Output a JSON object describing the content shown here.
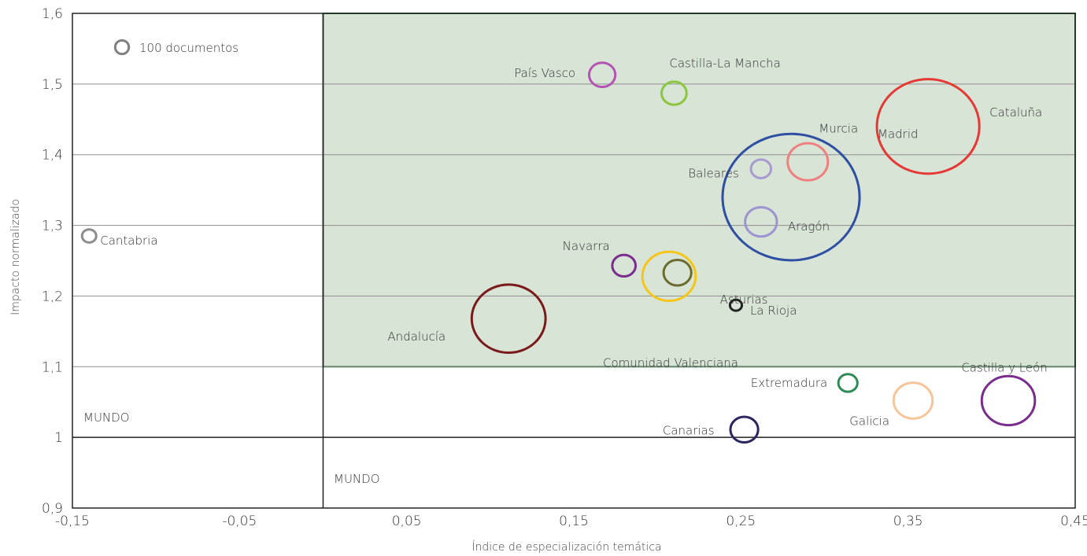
{
  "chart_data": {
    "type": "scatter",
    "title": "",
    "xlabel": "Índice de especialización temática",
    "ylabel": "Impacto normalizado",
    "xlim": [
      -0.15,
      0.45
    ],
    "ylim": [
      0.9,
      1.6
    ],
    "x_ticks": [
      -0.15,
      -0.05,
      0.05,
      0.15,
      0.25,
      0.35,
      0.45
    ],
    "x_tick_labels": [
      "-0,15",
      "-0,05",
      "0,05",
      "0,15",
      "0,25",
      "0,35",
      "0,45"
    ],
    "y_ticks": [
      0.9,
      1.0,
      1.1,
      1.2,
      1.3,
      1.4,
      1.5,
      1.6
    ],
    "y_tick_labels": [
      "0,9",
      "1",
      "1,1",
      "1,2",
      "1,3",
      "1,4",
      "1,5",
      "1,6"
    ],
    "grid": "horizontal",
    "reference_lines": {
      "x": 0.0,
      "y": 1.0
    },
    "highlight_region": {
      "x": [
        0.0,
        0.45
      ],
      "y": [
        1.1,
        1.6
      ],
      "fill": "#d8e4d6",
      "stroke": "#2e7d3a"
    },
    "region_labels": [
      "MUNDO",
      "MUNDO"
    ],
    "size_legend": {
      "label": "100 documentos",
      "documents": 100,
      "color": "#808080"
    },
    "points": [
      {
        "name": "Cantabria",
        "x": -0.14,
        "y": 1.285,
        "documents": 100,
        "color": "#8c8c8c"
      },
      {
        "name": "País Vasco",
        "x": 0.167,
        "y": 1.513,
        "documents": 340,
        "color": "#b553b5"
      },
      {
        "name": "Castilla-La Mancha",
        "x": 0.21,
        "y": 1.487,
        "documents": 310,
        "color": "#8cc63f"
      },
      {
        "name": "Cataluña",
        "x": 0.362,
        "y": 1.44,
        "documents": 5200,
        "color": "#e53935"
      },
      {
        "name": "Murcia",
        "x": 0.29,
        "y": 1.39,
        "documents": 800,
        "color": "#f08080"
      },
      {
        "name": "Baleares",
        "x": 0.262,
        "y": 1.38,
        "documents": 200,
        "color": "#a89bd0"
      },
      {
        "name": "Madrid",
        "x": 0.28,
        "y": 1.34,
        "documents": 9300,
        "color": "#2f4fa2"
      },
      {
        "name": "Aragón",
        "x": 0.262,
        "y": 1.305,
        "documents": 500,
        "color": "#9e94d0"
      },
      {
        "name": "Navarra",
        "x": 0.18,
        "y": 1.243,
        "documents": 270,
        "color": "#7b2d8e"
      },
      {
        "name": "Asturias",
        "x": 0.212,
        "y": 1.233,
        "documents": 380,
        "color": "#6b6b2d"
      },
      {
        "name": "Comunidad Valenciana",
        "x": 0.207,
        "y": 1.228,
        "documents": 1400,
        "color": "#f5c518"
      },
      {
        "name": "La Rioja",
        "x": 0.247,
        "y": 1.187,
        "documents": 70,
        "color": "#222222"
      },
      {
        "name": "Andalucía",
        "x": 0.111,
        "y": 1.168,
        "documents": 2700,
        "color": "#7a1a1a"
      },
      {
        "name": "Extremadura",
        "x": 0.314,
        "y": 1.077,
        "documents": 180,
        "color": "#2e8b57"
      },
      {
        "name": "Galicia",
        "x": 0.353,
        "y": 1.052,
        "documents": 750,
        "color": "#f6c59b"
      },
      {
        "name": "Castilla y León",
        "x": 0.41,
        "y": 1.052,
        "documents": 1400,
        "color": "#7b2d8e"
      },
      {
        "name": "Canarias",
        "x": 0.252,
        "y": 1.011,
        "documents": 380,
        "color": "#2b2560"
      }
    ]
  }
}
